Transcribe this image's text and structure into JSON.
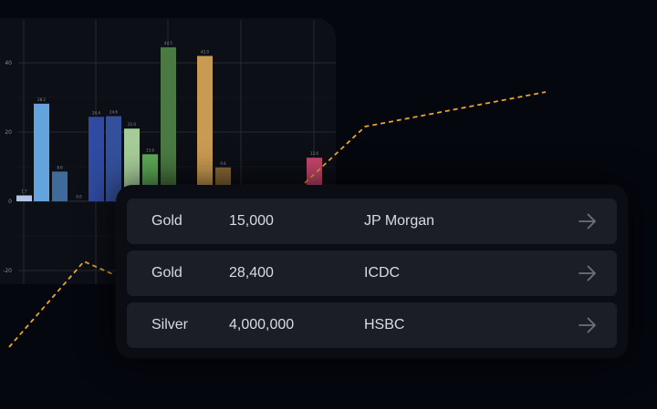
{
  "chart_data": {
    "type": "bar",
    "categories": [
      "",
      "",
      "",
      "",
      "",
      "",
      "",
      "",
      "",
      "",
      "",
      "",
      "",
      ""
    ],
    "series": [
      {
        "values": [
          1.7,
          28.2,
          8.6,
          0.0,
          24.4,
          24.6,
          21.0,
          13.6,
          44.5,
          0,
          42.0,
          9.8,
          0,
          12.6
        ]
      }
    ],
    "value_labels": [
      "1.7",
      "28.2",
      "8.6",
      "0.0",
      "24.4",
      "24.6",
      "21.0",
      "13.6",
      "44.5",
      "",
      "42.0",
      "9.8",
      "",
      "12.6"
    ],
    "bar_colors": [
      "#b4c6e8",
      "#63a4de",
      "#3f6a9c",
      "#2a3246",
      "#2f4aa0",
      "#34509a",
      "#a5cc98",
      "#5ea858",
      "#4a7a42",
      "#000000",
      "#c99a52",
      "#8a6a38",
      "#000000",
      "#c8466e"
    ],
    "y_ticks": [
      "40",
      "20",
      "0",
      "-20"
    ],
    "y_tick_values": [
      40,
      20,
      0,
      -20
    ],
    "ylim": [
      -24,
      48
    ],
    "grid": true,
    "background": "#0d0f17",
    "grid_color": "#272a33",
    "label_color": "#8a8d96"
  },
  "trend": {
    "color": "#e8a72a",
    "style": "dashed"
  },
  "holdings": [
    {
      "metal": "Gold",
      "amount": "15,000",
      "bank": "JP Morgan"
    },
    {
      "metal": "Gold",
      "amount": "28,400",
      "bank": "ICDC"
    },
    {
      "metal": "Silver",
      "amount": "4,000,000",
      "bank": "HSBC"
    }
  ],
  "icons": {
    "row_action": "arrow-right-icon"
  },
  "colors": {
    "page_bg": "#05070f",
    "card_bg": "#0b0d15",
    "row_bg": "#1c1e26",
    "row_text": "#d9dbe2",
    "arrow": "#6e717a"
  }
}
